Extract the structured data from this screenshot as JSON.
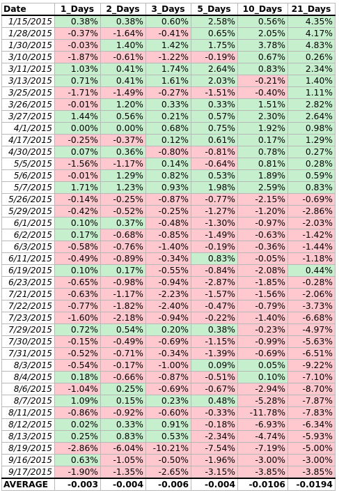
{
  "headers": [
    "Date",
    "1_Days",
    "2_Days",
    "3_Days",
    "5_Days",
    "10_Days",
    "21_Days"
  ],
  "rows": [
    {
      "date": "1/15/2015",
      "values": [
        "0.38%",
        "0.38%",
        "0.60%",
        "2.58%",
        "0.56%",
        "4.35%"
      ]
    },
    {
      "date": "1/28/2015",
      "values": [
        "-0.37%",
        "-1.64%",
        "-0.41%",
        "0.65%",
        "2.05%",
        "4.17%"
      ]
    },
    {
      "date": "1/30/2015",
      "values": [
        "-0.03%",
        "1.40%",
        "1.42%",
        "1.75%",
        "3.78%",
        "4.83%"
      ]
    },
    {
      "date": "3/10/2015",
      "values": [
        "-1.87%",
        "-0.61%",
        "-1.22%",
        "-0.19%",
        "0.67%",
        "0.26%"
      ]
    },
    {
      "date": "3/11/2015",
      "values": [
        "1.03%",
        "0.41%",
        "1.74%",
        "2.64%",
        "0.83%",
        "2.34%"
      ]
    },
    {
      "date": "3/13/2015",
      "values": [
        "0.71%",
        "0.41%",
        "1.61%",
        "2.03%",
        "-0.21%",
        "1.40%"
      ]
    },
    {
      "date": "3/25/2015",
      "values": [
        "-1.71%",
        "-1.49%",
        "-0.27%",
        "-1.51%",
        "-0.40%",
        "1.11%"
      ]
    },
    {
      "date": "3/26/2015",
      "values": [
        "-0.01%",
        "1.20%",
        "0.33%",
        "0.33%",
        "1.51%",
        "2.82%"
      ]
    },
    {
      "date": "3/27/2015",
      "values": [
        "1.44%",
        "0.56%",
        "0.21%",
        "0.57%",
        "2.30%",
        "2.64%"
      ]
    },
    {
      "date": "4/1/2015",
      "values": [
        "0.00%",
        "0.00%",
        "0.68%",
        "0.75%",
        "1.92%",
        "0.98%"
      ]
    },
    {
      "date": "4/17/2015",
      "values": [
        "-0.25%",
        "-0.37%",
        "0.12%",
        "0.61%",
        "0.17%",
        "1.29%"
      ]
    },
    {
      "date": "4/30/2015",
      "values": [
        "0.07%",
        "0.36%",
        "-0.80%",
        "-0.81%",
        "0.78%",
        "0.27%"
      ]
    },
    {
      "date": "5/5/2015",
      "values": [
        "-1.56%",
        "-1.17%",
        "0.14%",
        "-0.64%",
        "0.81%",
        "0.28%"
      ]
    },
    {
      "date": "5/6/2015",
      "values": [
        "-0.01%",
        "1.29%",
        "0.82%",
        "0.53%",
        "1.89%",
        "0.59%"
      ]
    },
    {
      "date": "5/7/2015",
      "values": [
        "1.71%",
        "1.23%",
        "0.93%",
        "1.98%",
        "2.59%",
        "0.83%"
      ]
    },
    {
      "date": "5/26/2015",
      "values": [
        "-0.14%",
        "-0.25%",
        "-0.87%",
        "-0.77%",
        "-2.15%",
        "-0.69%"
      ]
    },
    {
      "date": "5/29/2015",
      "values": [
        "-0.42%",
        "-0.52%",
        "-0.25%",
        "-1.27%",
        "-1.20%",
        "-2.86%"
      ]
    },
    {
      "date": "6/1/2015",
      "values": [
        "0.10%",
        "0.37%",
        "-0.48%",
        "-1.30%",
        "-0.97%",
        "-2.03%"
      ]
    },
    {
      "date": "6/2/2015",
      "values": [
        "0.17%",
        "-0.68%",
        "-0.85%",
        "-1.49%",
        "-0.63%",
        "-1.42%"
      ]
    },
    {
      "date": "6/3/2015",
      "values": [
        "-0.58%",
        "-0.76%",
        "-1.40%",
        "-0.19%",
        "-0.36%",
        "-1.44%"
      ]
    },
    {
      "date": "6/11/2015",
      "values": [
        "-0.49%",
        "-0.89%",
        "-0.34%",
        "0.83%",
        "-0.05%",
        "-1.18%"
      ]
    },
    {
      "date": "6/19/2015",
      "values": [
        "0.10%",
        "0.17%",
        "-0.55%",
        "-0.84%",
        "-2.08%",
        "0.44%"
      ]
    },
    {
      "date": "6/23/2015",
      "values": [
        "-0.65%",
        "-0.98%",
        "-0.94%",
        "-2.87%",
        "-1.85%",
        "-0.28%"
      ]
    },
    {
      "date": "7/21/2015",
      "values": [
        "-0.63%",
        "-1.17%",
        "-2.23%",
        "-1.57%",
        "-1.56%",
        "-2.06%"
      ]
    },
    {
      "date": "7/22/2015",
      "values": [
        "-0.77%",
        "-1.82%",
        "-2.40%",
        "-0.47%",
        "-0.79%",
        "-3.73%"
      ]
    },
    {
      "date": "7/23/2015",
      "values": [
        "-1.60%",
        "-2.18%",
        "-0.94%",
        "-0.22%",
        "-1.40%",
        "-6.68%"
      ]
    },
    {
      "date": "7/29/2015",
      "values": [
        "0.72%",
        "0.54%",
        "0.20%",
        "0.38%",
        "-0.23%",
        "-4.97%"
      ]
    },
    {
      "date": "7/30/2015",
      "values": [
        "-0.15%",
        "-0.49%",
        "-0.69%",
        "-1.15%",
        "-0.99%",
        "-5.63%"
      ]
    },
    {
      "date": "7/31/2015",
      "values": [
        "-0.52%",
        "-0.71%",
        "-0.34%",
        "-1.39%",
        "-0.69%",
        "-6.51%"
      ]
    },
    {
      "date": "8/3/2015",
      "values": [
        "-0.54%",
        "-0.17%",
        "-1.00%",
        "0.09%",
        "0.05%",
        "-9.22%"
      ]
    },
    {
      "date": "8/4/2015",
      "values": [
        "0.18%",
        "-0.66%",
        "-0.87%",
        "-0.51%",
        "0.10%",
        "-7.10%"
      ]
    },
    {
      "date": "8/6/2015",
      "values": [
        "-1.04%",
        "0.25%",
        "-0.69%",
        "-0.67%",
        "-2.94%",
        "-8.70%"
      ]
    },
    {
      "date": "8/7/2015",
      "values": [
        "1.09%",
        "0.15%",
        "0.23%",
        "0.48%",
        "-5.28%",
        "-7.87%"
      ]
    },
    {
      "date": "8/11/2015",
      "values": [
        "-0.86%",
        "-0.92%",
        "-0.60%",
        "-0.33%",
        "-11.78%",
        "-7.83%"
      ]
    },
    {
      "date": "8/12/2015",
      "values": [
        "0.02%",
        "0.33%",
        "0.91%",
        "-0.18%",
        "-6.93%",
        "-6.34%"
      ]
    },
    {
      "date": "8/13/2015",
      "values": [
        "0.25%",
        "0.83%",
        "0.53%",
        "-2.34%",
        "-4.74%",
        "-5.93%"
      ]
    },
    {
      "date": "8/19/2015",
      "values": [
        "-2.86%",
        "-6.04%",
        "-10.21%",
        "-7.54%",
        "-7.19%",
        "-5.00%"
      ]
    },
    {
      "date": "9/16/2015",
      "values": [
        "0.63%",
        "-1.05%",
        "-0.50%",
        "-1.96%",
        "-3.00%",
        "-3.00%"
      ]
    },
    {
      "date": "9/17/2015",
      "values": [
        "-1.90%",
        "-1.35%",
        "-2.65%",
        "-3.15%",
        "-3.85%",
        "-3.85%"
      ]
    }
  ],
  "footer": {
    "label": "AVERAGE",
    "values": [
      "-0.003",
      "-0.004",
      "-0.006",
      "-0.004",
      "-0.0106",
      "-0.0194"
    ]
  },
  "colors": {
    "positive_fill": "#c6efce",
    "negative_fill": "#ffc7ce",
    "grid": "#b8b8b8",
    "border": "#000000"
  }
}
